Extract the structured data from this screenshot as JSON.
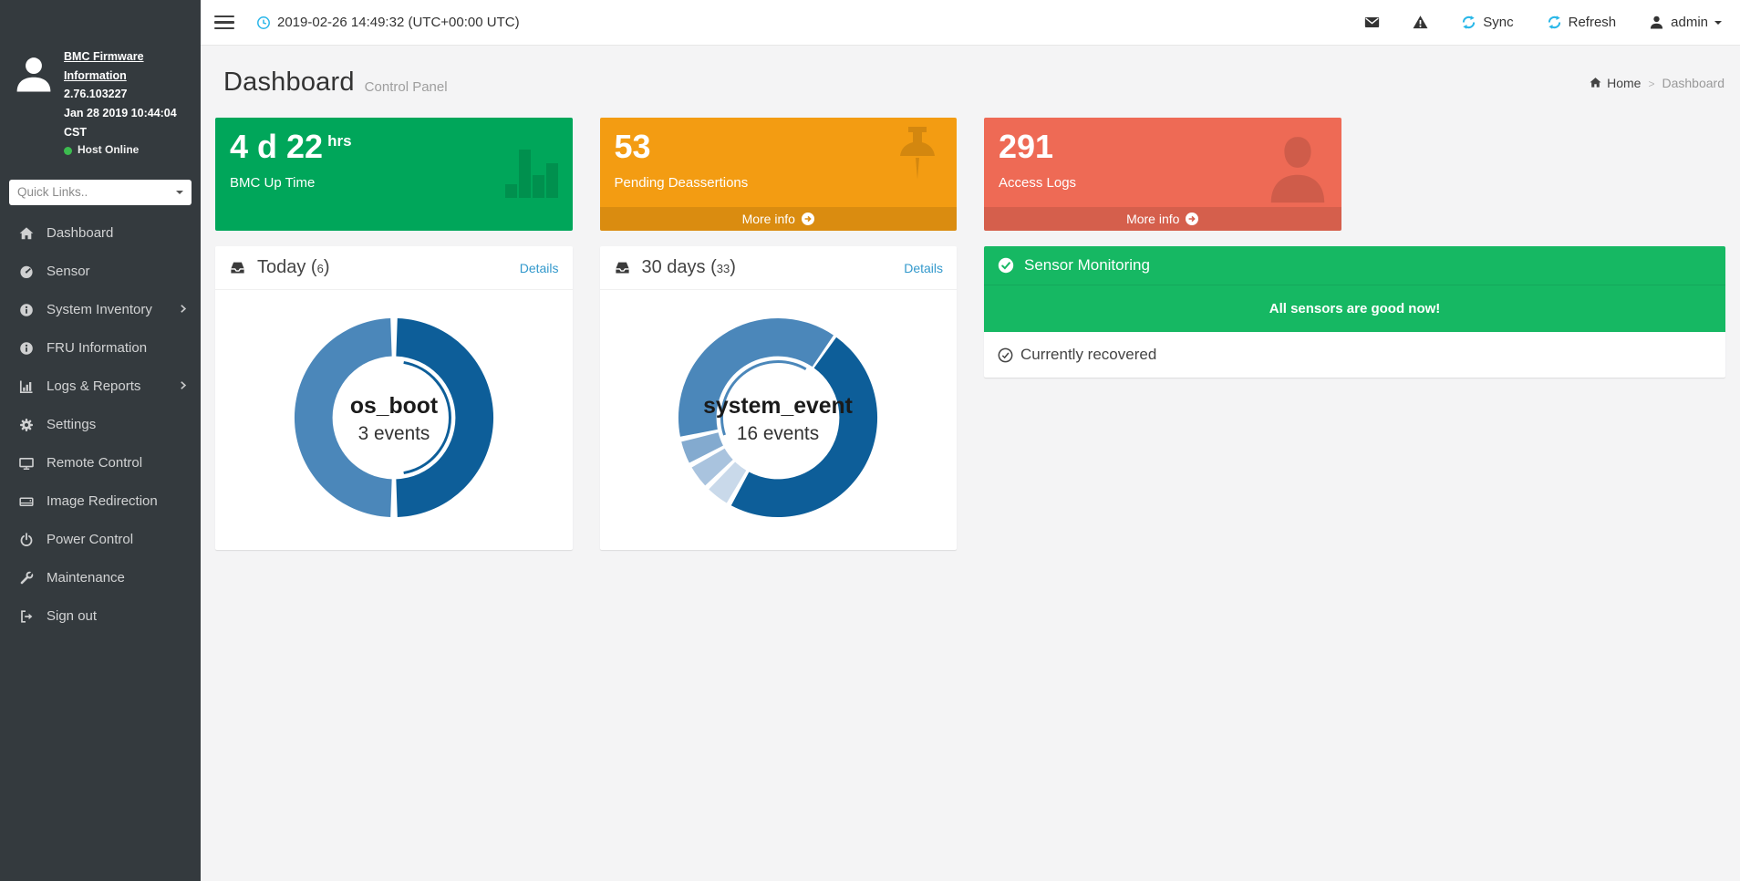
{
  "sidebar": {
    "firmware_link": "BMC Firmware Information",
    "version": "2.76.103227",
    "date": "Jan 28 2019 10:44:04 CST",
    "host_status": "Host Online",
    "quick_links_placeholder": "Quick Links..",
    "items": [
      {
        "label": "Dashboard",
        "icon": "home-icon"
      },
      {
        "label": "Sensor",
        "icon": "gauge-icon"
      },
      {
        "label": "System Inventory",
        "icon": "info-circle-icon",
        "has_submenu": true
      },
      {
        "label": "FRU Information",
        "icon": "info-circle-icon"
      },
      {
        "label": "Logs & Reports",
        "icon": "bar-chart-icon",
        "has_submenu": true
      },
      {
        "label": "Settings",
        "icon": "gear-icon"
      },
      {
        "label": "Remote Control",
        "icon": "monitor-icon"
      },
      {
        "label": "Image Redirection",
        "icon": "drive-icon"
      },
      {
        "label": "Power Control",
        "icon": "power-icon"
      },
      {
        "label": "Maintenance",
        "icon": "wrench-icon"
      },
      {
        "label": "Sign out",
        "icon": "sign-out-icon"
      }
    ]
  },
  "topbar": {
    "datetime": "2019-02-26 14:49:32 (UTC+00:00 UTC)",
    "sync_label": "Sync",
    "refresh_label": "Refresh",
    "user": "admin"
  },
  "header": {
    "title": "Dashboard",
    "subtitle": "Control Panel",
    "breadcrumb": {
      "home": "Home",
      "current": "Dashboard"
    }
  },
  "cards": [
    {
      "value": "4 d 22",
      "unit": "hrs",
      "label": "BMC Up Time",
      "color": "#00a65a",
      "icon": "bar-chart-icon"
    },
    {
      "value": "53",
      "label": "Pending Deassertions",
      "color": "#f39c12",
      "icon": "pushpin-icon",
      "more_info": "More info"
    },
    {
      "value": "291",
      "label": "Access Logs",
      "color": "#ee6a55",
      "icon": "person-icon",
      "more_info": "More info"
    }
  ],
  "chart_data": [
    {
      "type": "donut",
      "panel_title": "Today",
      "event_count": 6,
      "details_label": "Details",
      "center_label": "os_boot",
      "center_value": "3 events",
      "slices": [
        {
          "label": "os_boot",
          "value": 3,
          "color": "#0d5e99"
        },
        {
          "label": "others",
          "value": 3,
          "color": "#4b87ba"
        }
      ],
      "segments": [
        {
          "start": 2,
          "end": 178,
          "color": "#0d5e99"
        },
        {
          "start": 182,
          "end": 358,
          "color": "#4b87ba"
        }
      ],
      "selection_ring": {
        "start": 10,
        "end": 170,
        "color": "#0d5e99"
      }
    },
    {
      "type": "donut",
      "panel_title": "30 days",
      "event_count": 33,
      "details_label": "Details",
      "center_label": "system_event",
      "center_value": "16 events",
      "slices": [
        {
          "label": "system_event",
          "value": 16,
          "color": "#0d5e99"
        },
        {
          "label": "slice-2",
          "value": 1,
          "color": "#c9d9ea"
        },
        {
          "label": "slice-3",
          "value": 1,
          "color": "#a9c3de"
        },
        {
          "label": "slice-4",
          "value": 1,
          "color": "#83aacf"
        },
        {
          "label": "others",
          "value": 14,
          "color": "#4b87ba"
        }
      ],
      "segments": [
        {
          "start": 36,
          "end": 208,
          "color": "#0d5e99"
        },
        {
          "start": 211,
          "end": 224,
          "color": "#c9d9ea"
        },
        {
          "start": 227,
          "end": 240,
          "color": "#a9c3de"
        },
        {
          "start": 243,
          "end": 256,
          "color": "#83aacf"
        },
        {
          "start": 259,
          "end": 394,
          "color": "#4b87ba"
        }
      ],
      "selection_ring": {
        "start": 252,
        "end": 390,
        "color": "#4b87ba"
      }
    }
  ],
  "sensor_panel": {
    "title": "Sensor Monitoring",
    "message": "All sensors are good now!",
    "status": "Currently recovered",
    "color": "#16b863"
  }
}
